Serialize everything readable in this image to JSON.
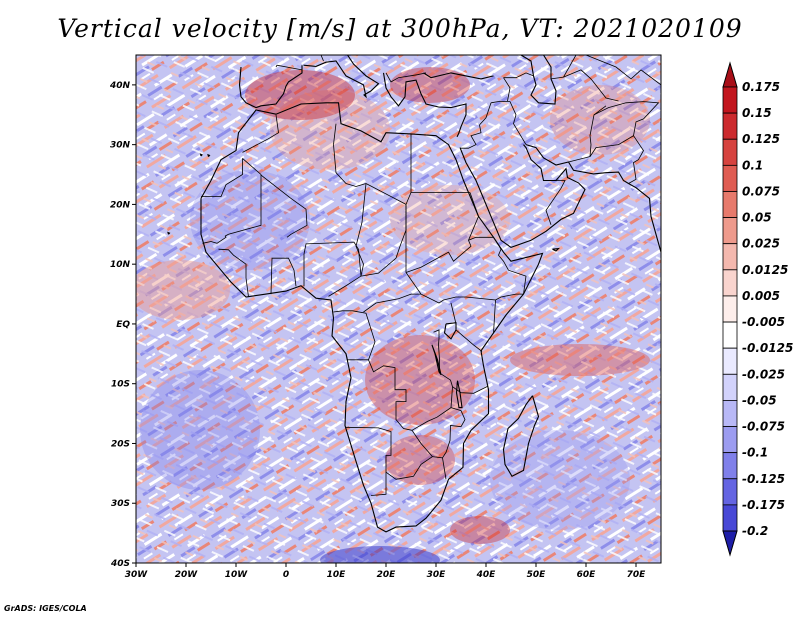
{
  "title": "Vertical velocity [m/s] at 300hPa, VT: 2021020109",
  "credit": "GrADS: IGES/COLA",
  "map": {
    "lon_range": [
      -30,
      75
    ],
    "lat_range": [
      -40,
      45
    ],
    "lat_ticks": [
      {
        "value": 40,
        "label": "40N"
      },
      {
        "value": 30,
        "label": "30N"
      },
      {
        "value": 20,
        "label": "20N"
      },
      {
        "value": 10,
        "label": "10N"
      },
      {
        "value": 0,
        "label": "EQ"
      },
      {
        "value": -10,
        "label": "10S"
      },
      {
        "value": -20,
        "label": "20S"
      },
      {
        "value": -30,
        "label": "30S"
      },
      {
        "value": -40,
        "label": "40S"
      }
    ],
    "lon_ticks": [
      {
        "value": -30,
        "label": "30W"
      },
      {
        "value": -20,
        "label": "20W"
      },
      {
        "value": -10,
        "label": "10W"
      },
      {
        "value": 0,
        "label": "0"
      },
      {
        "value": 10,
        "label": "10E"
      },
      {
        "value": 20,
        "label": "20E"
      },
      {
        "value": 30,
        "label": "30E"
      },
      {
        "value": 40,
        "label": "40E"
      },
      {
        "value": 50,
        "label": "50E"
      },
      {
        "value": 60,
        "label": "60E"
      },
      {
        "value": 70,
        "label": "70E"
      }
    ]
  },
  "colorbar": {
    "levels": [
      {
        "label": "0.175",
        "color": "#c2161e"
      },
      {
        "label": "0.15",
        "color": "#cc2a2e"
      },
      {
        "label": "0.125",
        "color": "#d6433f"
      },
      {
        "label": "0.1",
        "color": "#df5c52"
      },
      {
        "label": "0.075",
        "color": "#e77a6c"
      },
      {
        "label": "0.05",
        "color": "#ee9a8c"
      },
      {
        "label": "0.025",
        "color": "#f4b8ae"
      },
      {
        "label": "0.0125",
        "color": "#f9d4ce"
      },
      {
        "label": "0.005",
        "color": "#fdeeeb"
      },
      {
        "label": "-0.005",
        "color": "#ffffff"
      },
      {
        "label": "-0.0125",
        "color": "#eaeaff"
      },
      {
        "label": "-0.025",
        "color": "#d2d2fb"
      },
      {
        "label": "-0.05",
        "color": "#b8b8f6"
      },
      {
        "label": "-0.075",
        "color": "#9c9cf0"
      },
      {
        "label": "-0.1",
        "color": "#8080ea"
      },
      {
        "label": "-0.125",
        "color": "#6464e2"
      },
      {
        "label": "-0.175",
        "color": "#4848d6"
      },
      {
        "label": "-0.2",
        "color": "#3030c6"
      }
    ],
    "top_arrow_color": "#a80e18",
    "bottom_arrow_color": "#1e1ea8"
  }
}
